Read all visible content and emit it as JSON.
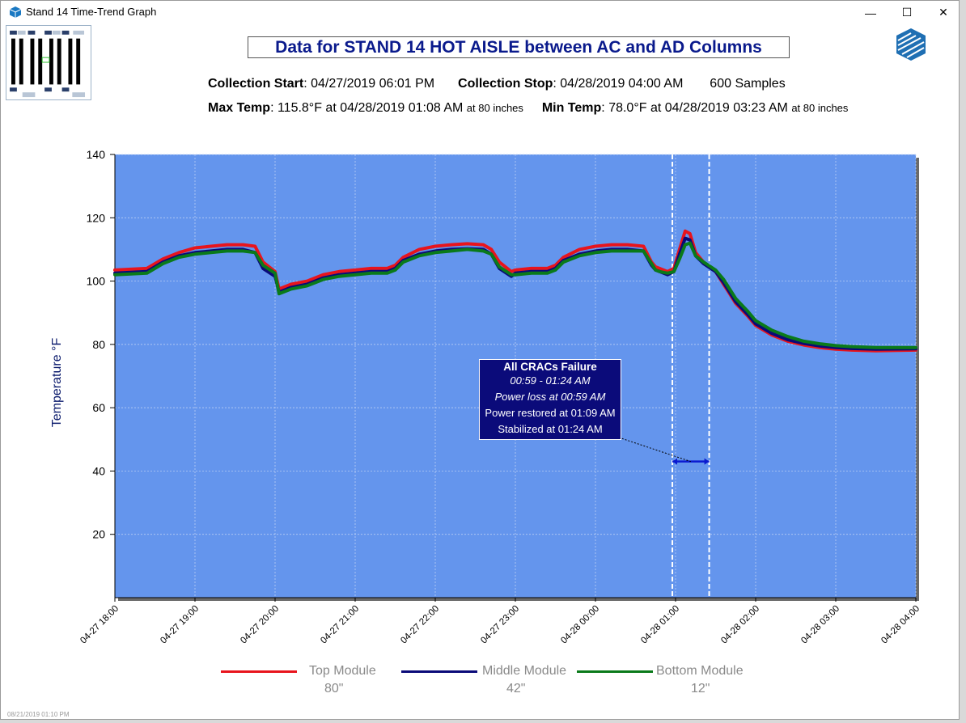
{
  "window": {
    "title": "Stand 14 Time-Trend Graph",
    "minimize": "—",
    "maximize": "☐",
    "close": "✕"
  },
  "header": {
    "title": "Data for STAND 14 HOT AISLE between AC and AD Columns",
    "collection_start_label": "Collection Start",
    "collection_start_value": ": 04/27/2019 06:01 PM",
    "collection_stop_label": "Collection Stop",
    "collection_stop_value": ": 04/28/2019 04:00 AM",
    "samples": "600 Samples",
    "max_temp_label": "Max Temp",
    "max_temp_value": ": 115.8°F at 04/28/2019 01:08 AM",
    "max_temp_height": "at 80 inches",
    "min_temp_label": "Min Temp",
    "min_temp_value": ": 78.0°F at 04/28/2019 03:23 AM",
    "min_temp_height": "at 80 inches"
  },
  "annotation": {
    "title": "All CRACs Failure",
    "range": "00:59 - 01:24 AM",
    "power_loss": "Power loss at 00:59 AM",
    "power_restored": "Power restored at 01:09 AM",
    "stabilized": "Stabilized at 01:24 AM"
  },
  "footer_stamp": "08/21/2019 01:10 PM",
  "legend": [
    {
      "name": "Top Module",
      "sub": "80\"",
      "color": "#e8141c"
    },
    {
      "name": "Middle Module",
      "sub": "42\"",
      "color": "#0a0a78"
    },
    {
      "name": "Bottom Module",
      "sub": "12\"",
      "color": "#0a7a1a"
    }
  ],
  "chart_data": {
    "type": "line",
    "ylabel": "Temperature °F",
    "ylim": [
      0,
      140
    ],
    "yticks": [
      20,
      40,
      60,
      80,
      100,
      120,
      140
    ],
    "xlim_hours": [
      0,
      10
    ],
    "xticks": [
      "04-27 18:00",
      "04-27 19:00",
      "04-27 20:00",
      "04-27 21:00",
      "04-27 22:00",
      "04-27 23:00",
      "04-28 00:00",
      "04-28 01:00",
      "04-28 02:00",
      "04-28 03:00",
      "04-28 04:00"
    ],
    "background": "#6495ed",
    "grid": true,
    "markers_hours": [
      6.96,
      7.42
    ],
    "span_marker_temp": 43,
    "series": [
      {
        "name": "Top Module",
        "color": "#e8141c",
        "x": [
          0,
          0.4,
          0.6,
          0.8,
          1.0,
          1.2,
          1.4,
          1.6,
          1.75,
          1.85,
          2.0,
          2.05,
          2.2,
          2.4,
          2.6,
          2.8,
          3.0,
          3.2,
          3.4,
          3.5,
          3.6,
          3.8,
          4.0,
          4.2,
          4.4,
          4.6,
          4.7,
          4.8,
          4.95,
          5.0,
          5.2,
          5.4,
          5.5,
          5.6,
          5.8,
          6.0,
          6.2,
          6.4,
          6.6,
          6.7,
          6.75,
          6.8,
          6.9,
          6.98,
          7.05,
          7.12,
          7.18,
          7.25,
          7.35,
          7.5,
          7.6,
          7.65,
          7.75,
          7.9,
          8.0,
          8.2,
          8.4,
          8.6,
          8.8,
          9.0,
          9.2,
          9.5,
          10.0
        ],
        "y": [
          103.5,
          104,
          107,
          109,
          110.5,
          111,
          111.5,
          111.5,
          111,
          106,
          103,
          97.5,
          99,
          100,
          102,
          103,
          103.5,
          104,
          104,
          105,
          107.5,
          110,
          111,
          111.5,
          111.8,
          111.5,
          110,
          106,
          103,
          103.5,
          104,
          104,
          105,
          107.5,
          110,
          111,
          111.5,
          111.5,
          111,
          106,
          104.5,
          104,
          103,
          104,
          110,
          115.8,
          115,
          109,
          106,
          103,
          99,
          97,
          93,
          89,
          86,
          83,
          81,
          79.8,
          79,
          78.5,
          78.2,
          78,
          78.2
        ]
      },
      {
        "name": "Middle Module",
        "color": "#0a0a78",
        "x": [
          0,
          0.4,
          0.6,
          0.8,
          1.0,
          1.2,
          1.4,
          1.6,
          1.75,
          1.85,
          2.0,
          2.05,
          2.2,
          2.4,
          2.6,
          2.8,
          3.0,
          3.2,
          3.4,
          3.5,
          3.6,
          3.8,
          4.0,
          4.2,
          4.4,
          4.6,
          4.7,
          4.8,
          4.95,
          5.0,
          5.2,
          5.4,
          5.5,
          5.6,
          5.8,
          6.0,
          6.2,
          6.4,
          6.6,
          6.7,
          6.75,
          6.8,
          6.9,
          6.98,
          7.05,
          7.12,
          7.18,
          7.25,
          7.35,
          7.5,
          7.6,
          7.65,
          7.75,
          7.9,
          8.0,
          8.2,
          8.4,
          8.6,
          8.8,
          9.0,
          9.2,
          9.5,
          10.0
        ],
        "y": [
          102.5,
          103,
          106,
          108,
          109,
          109.5,
          110,
          110,
          109,
          104,
          101.5,
          96.5,
          98,
          99,
          101,
          102,
          102.5,
          103,
          103,
          104,
          106.5,
          108.5,
          109.5,
          110,
          110.2,
          110,
          108.5,
          104,
          101.5,
          102.5,
          103,
          103,
          104,
          106.5,
          108.5,
          109.5,
          110,
          110,
          109.5,
          105,
          103.5,
          103,
          102,
          103,
          108.5,
          113.5,
          113,
          108,
          105.5,
          103,
          99.5,
          97.5,
          93.5,
          89.5,
          86.5,
          83.5,
          81.5,
          80.3,
          79.5,
          79,
          78.7,
          78.5,
          78.6
        ]
      },
      {
        "name": "Bottom Module",
        "color": "#0a7a1a",
        "x": [
          0,
          0.4,
          0.6,
          0.8,
          1.0,
          1.2,
          1.4,
          1.6,
          1.75,
          1.85,
          2.0,
          2.05,
          2.2,
          2.4,
          2.6,
          2.8,
          3.0,
          3.2,
          3.4,
          3.5,
          3.6,
          3.8,
          4.0,
          4.2,
          4.4,
          4.6,
          4.7,
          4.8,
          4.95,
          5.0,
          5.2,
          5.4,
          5.5,
          5.6,
          5.8,
          6.0,
          6.2,
          6.4,
          6.6,
          6.7,
          6.75,
          6.8,
          6.9,
          6.98,
          7.05,
          7.12,
          7.18,
          7.25,
          7.35,
          7.5,
          7.6,
          7.65,
          7.75,
          7.9,
          8.0,
          8.2,
          8.4,
          8.6,
          8.8,
          9.0,
          9.2,
          9.5,
          10.0
        ],
        "y": [
          102,
          102.5,
          105.5,
          107.5,
          108.5,
          109,
          109.5,
          109.5,
          109,
          105,
          102.5,
          96,
          97.5,
          98.5,
          100.5,
          101.5,
          102,
          102.5,
          102.5,
          103.5,
          106,
          108,
          109,
          109.5,
          110,
          109.5,
          108.5,
          104.5,
          102,
          102,
          102.5,
          102.5,
          103.5,
          106,
          108,
          109,
          109.5,
          109.5,
          109.5,
          105.5,
          103.5,
          103,
          102.5,
          103,
          107,
          111.5,
          112,
          108,
          106,
          103.5,
          100.5,
          98.5,
          94.5,
          90.5,
          87.5,
          84.5,
          82.5,
          81,
          80.2,
          79.6,
          79.3,
          79,
          79
        ]
      }
    ]
  }
}
